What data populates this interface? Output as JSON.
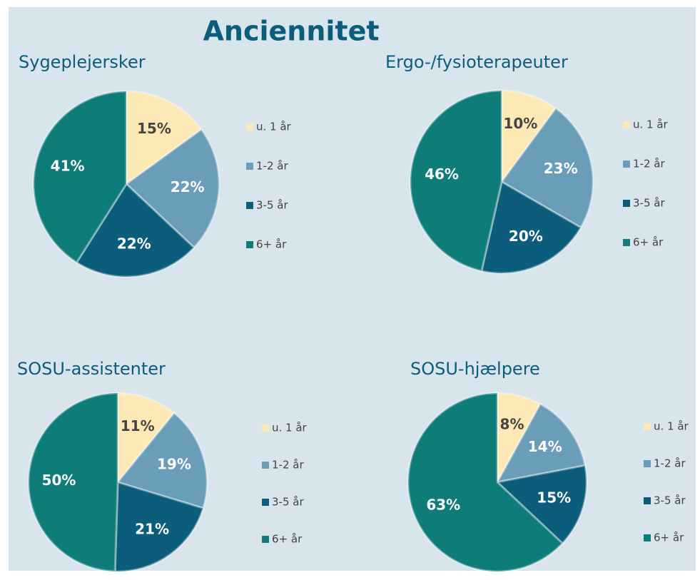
{
  "title": "Anciennitet",
  "chart_data": [
    {
      "type": "pie",
      "title": "Sygeplejersker",
      "categories": [
        "u. 1 år",
        "1-2 år",
        "3-5 år",
        "6+ år"
      ],
      "values": [
        15,
        22,
        22,
        41
      ],
      "value_labels": [
        "15%",
        "22%",
        "22%",
        "41%"
      ],
      "colors": [
        "#fde9b5",
        "#6a9db8",
        "#0b5d7b",
        "#0e7c78"
      ]
    },
    {
      "type": "pie",
      "title": "Ergo-/fysioterapeuter",
      "categories": [
        "u. 1 år",
        "1-2 år",
        "3-5 år",
        "6+ år"
      ],
      "values": [
        10,
        23,
        20,
        46
      ],
      "value_labels": [
        "10%",
        "23%",
        "20%",
        "46%"
      ],
      "colors": [
        "#fde9b5",
        "#6a9db8",
        "#0b5d7b",
        "#0e7c78"
      ]
    },
    {
      "type": "pie",
      "title": "SOSU-assistenter",
      "categories": [
        "u. 1 år",
        "1-2 år",
        "3-5 år",
        "6+ år"
      ],
      "values": [
        11,
        19,
        21,
        50
      ],
      "value_labels": [
        "11%",
        "19%",
        "21%",
        "50%"
      ],
      "colors": [
        "#fde9b5",
        "#6a9db8",
        "#0b5d7b",
        "#0e7c78"
      ]
    },
    {
      "type": "pie",
      "title": "SOSU-hjælpere",
      "categories": [
        "u. 1 år",
        "1-2 år",
        "3-5 år",
        "6+ år"
      ],
      "values": [
        8,
        14,
        15,
        63
      ],
      "value_labels": [
        "8%",
        "14%",
        "15%",
        "63%"
      ],
      "colors": [
        "#fde9b5",
        "#6a9db8",
        "#0b5d7b",
        "#0e7c78"
      ]
    }
  ]
}
